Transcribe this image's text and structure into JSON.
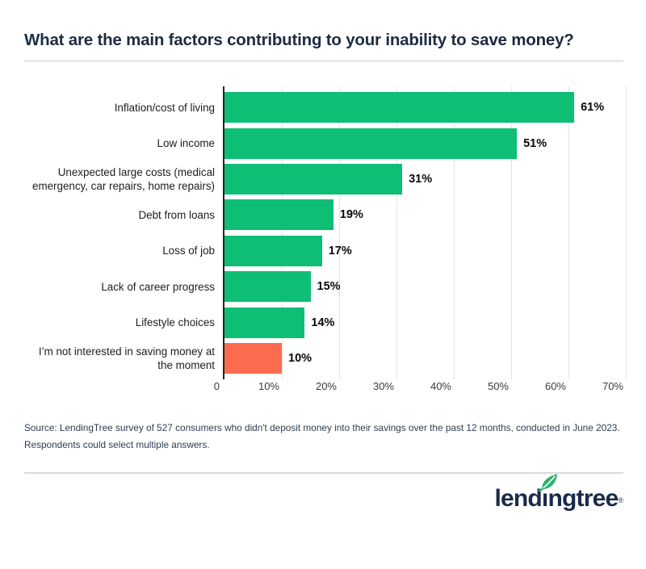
{
  "title": "What are the main factors contributing to your inability to save money?",
  "chart_data": {
    "type": "bar",
    "orientation": "horizontal",
    "title": "What are the main factors contributing to your inability to save money?",
    "categories": [
      "Inflation/cost of living",
      "Low income",
      "Unexpected large costs (medical\nemergency, car repairs, home repairs)",
      "Debt from loans",
      "Loss of job",
      "Lack of career progress",
      "Lifestyle choices",
      "I’m not interested in saving money at\nthe moment"
    ],
    "values": [
      61,
      51,
      31,
      19,
      17,
      15,
      14,
      10
    ],
    "unit": "%",
    "xlim": [
      0,
      70
    ],
    "x_ticks": [
      "0",
      "10%",
      "20%",
      "30%",
      "40%",
      "50%",
      "60%",
      "70%"
    ],
    "grid": "vertical",
    "legend": "none",
    "bar_color": "#0fbe75",
    "highlight_color": "#fa6c4d",
    "highlight_index": 7
  },
  "source": {
    "lines": [
      "Source: LendingTree survey of 527 consumers who didn't deposit money into their savings over the past 12 months, conducted in June 2023.",
      "Respondents could select multiple answers."
    ]
  },
  "logo": {
    "brand": "lendingtree",
    "text_pre": "lend",
    "text_i": "ı",
    "text_post": "ngtree",
    "registered_mark": "®",
    "navy": "#1a2b4a",
    "leaf_green": "#2eb36e"
  }
}
